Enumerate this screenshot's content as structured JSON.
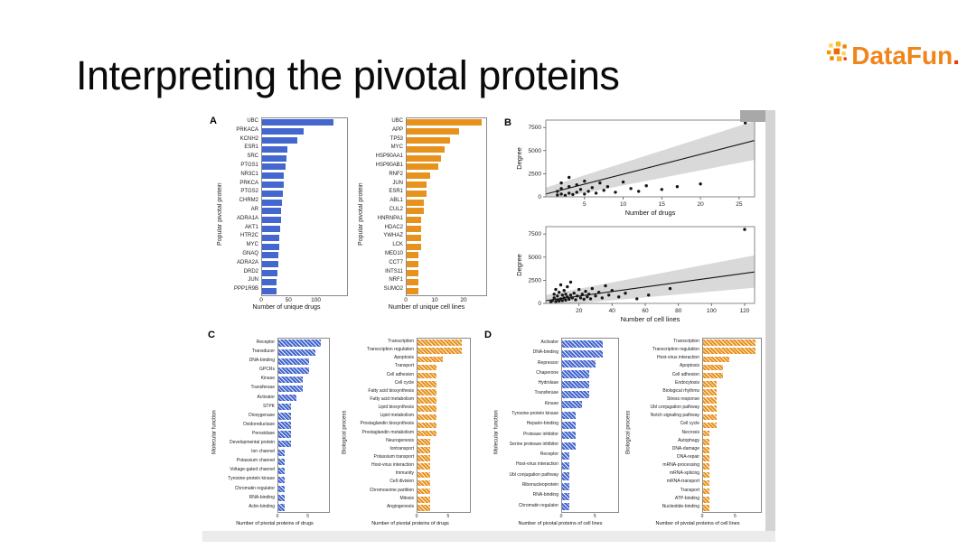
{
  "slide": {
    "title": "Interpreting the pivotal proteins",
    "panels": [
      "A",
      "B",
      "C",
      "D"
    ]
  },
  "logo": {
    "text": "DataFun",
    "dot": ".",
    "icon": "pixel-mosaic-icon"
  },
  "colors": {
    "blue": "#4467cf",
    "orange": "#e8921e",
    "band": "#b9b9b9"
  },
  "chart_data": [
    {
      "id": "a_drugs",
      "panel": "A",
      "type": "bar",
      "orientation": "horizontal",
      "color": "blue",
      "hatch": false,
      "ylabel": "Popular pivotal protein",
      "xlabel": "Number of unique drugs",
      "xlim": [
        0,
        155
      ],
      "xticks": [
        0,
        50,
        100
      ],
      "categories": [
        "UBC",
        "PRKACA",
        "KCNH2",
        "ESR1",
        "SRC",
        "PTGS1",
        "NR3C1",
        "PRKCA",
        "PTGS2",
        "CHRM2",
        "AR",
        "ADRA1A",
        "AKT1",
        "HTR2C",
        "MYC",
        "GNAQ",
        "ADRA2A",
        "DRD2",
        "JUN",
        "PPP1R9B"
      ],
      "values": [
        130,
        76,
        65,
        46,
        44,
        42,
        40,
        39,
        38,
        36,
        35,
        34,
        33,
        32,
        31,
        30,
        29,
        28,
        27,
        26
      ]
    },
    {
      "id": "a_cells",
      "panel": "A",
      "type": "bar",
      "orientation": "horizontal",
      "color": "orange",
      "hatch": false,
      "ylabel": "Popular pivotal protein",
      "xlabel": "Number of unique cell lines",
      "xlim": [
        0,
        27.5
      ],
      "xticks": [
        0,
        10,
        20
      ],
      "categories": [
        "UBC",
        "APP",
        "TP53",
        "MYC",
        "HSP90AA1",
        "HSP90AB1",
        "RNF2",
        "JUN",
        "ESR1",
        "ABL1",
        "CUL2",
        "HNRNPA1",
        "HDAC2",
        "YWHAZ",
        "LCK",
        "MED10",
        "CCT7",
        "INTS11",
        "NRF1",
        "SUMO2"
      ],
      "values": [
        26,
        18,
        15,
        13,
        12,
        11,
        8,
        7,
        7,
        6,
        6,
        5,
        5,
        5,
        5,
        4,
        4,
        4,
        4,
        4
      ]
    },
    {
      "id": "b_drugs",
      "panel": "B",
      "type": "scatter",
      "xlabel": "Number of drugs",
      "ylabel": "Degree",
      "xlim": [
        0,
        27
      ],
      "ylim": [
        0,
        8300
      ],
      "xticks": [
        5,
        10,
        15,
        20,
        25
      ],
      "yticks": [
        0,
        2500,
        5000,
        7500
      ],
      "line": [
        [
          0,
          300
        ],
        [
          27,
          6100
        ]
      ],
      "band": {
        "upper": [
          [
            0,
            1000
          ],
          [
            27,
            8200
          ]
        ],
        "lower": [
          [
            0,
            -400
          ],
          [
            27,
            4000
          ]
        ]
      },
      "points": [
        [
          1.5,
          200
        ],
        [
          1.5,
          600
        ],
        [
          2,
          300
        ],
        [
          2,
          900
        ],
        [
          2,
          1500
        ],
        [
          2.5,
          150
        ],
        [
          3,
          400
        ],
        [
          3,
          1100
        ],
        [
          3,
          2100
        ],
        [
          3.5,
          250
        ],
        [
          4,
          500
        ],
        [
          4,
          1300
        ],
        [
          4.5,
          800
        ],
        [
          5,
          300
        ],
        [
          5,
          1700
        ],
        [
          5.5,
          600
        ],
        [
          6,
          1000
        ],
        [
          6.5,
          400
        ],
        [
          7,
          1500
        ],
        [
          7.5,
          700
        ],
        [
          8,
          1100
        ],
        [
          9,
          500
        ],
        [
          10,
          1600
        ],
        [
          11,
          900
        ],
        [
          12,
          600
        ],
        [
          13,
          1200
        ],
        [
          15,
          800
        ],
        [
          17,
          1100
        ],
        [
          20,
          1400
        ],
        [
          25.8,
          8000
        ]
      ]
    },
    {
      "id": "b_cells",
      "panel": "B",
      "type": "scatter",
      "xlabel": "Number of cell lines",
      "ylabel": "Degree",
      "xlim": [
        0,
        126
      ],
      "ylim": [
        0,
        8300
      ],
      "xticks": [
        20,
        40,
        60,
        80,
        100,
        120
      ],
      "yticks": [
        0,
        2500,
        5000,
        7500
      ],
      "line": [
        [
          0,
          300
        ],
        [
          126,
          3400
        ]
      ],
      "band": {
        "upper": [
          [
            0,
            900
          ],
          [
            126,
            5200
          ]
        ],
        "lower": [
          [
            0,
            -300
          ],
          [
            126,
            1700
          ]
        ]
      },
      "points": [
        [
          3,
          150
        ],
        [
          4,
          300
        ],
        [
          5,
          600
        ],
        [
          5,
          1000
        ],
        [
          6,
          200
        ],
        [
          6,
          1500
        ],
        [
          7,
          400
        ],
        [
          7,
          800
        ],
        [
          8,
          250
        ],
        [
          8,
          1200
        ],
        [
          9,
          500
        ],
        [
          9,
          2000
        ],
        [
          10,
          300
        ],
        [
          10,
          900
        ],
        [
          11,
          600
        ],
        [
          11,
          1400
        ],
        [
          12,
          350
        ],
        [
          12,
          1000
        ],
        [
          13,
          700
        ],
        [
          13,
          1800
        ],
        [
          14,
          450
        ],
        [
          15,
          900
        ],
        [
          15,
          2300
        ],
        [
          16,
          600
        ],
        [
          17,
          1100
        ],
        [
          18,
          400
        ],
        [
          19,
          800
        ],
        [
          20,
          1500
        ],
        [
          21,
          600
        ],
        [
          22,
          1000
        ],
        [
          23,
          450
        ],
        [
          24,
          1300
        ],
        [
          25,
          700
        ],
        [
          26,
          1000
        ],
        [
          27,
          500
        ],
        [
          28,
          1600
        ],
        [
          30,
          800
        ],
        [
          32,
          1200
        ],
        [
          34,
          600
        ],
        [
          36,
          1900
        ],
        [
          38,
          900
        ],
        [
          40,
          1400
        ],
        [
          44,
          700
        ],
        [
          48,
          1100
        ],
        [
          55,
          500
        ],
        [
          62,
          900
        ],
        [
          75,
          1600
        ],
        [
          120,
          8000
        ]
      ]
    },
    {
      "id": "c_mf",
      "panel": "C",
      "type": "bar",
      "orientation": "horizontal",
      "color": "blue",
      "hatch": true,
      "ylabel": "Molecular function",
      "xlabel": "Number of pivotal proteins of drugs",
      "xlim": [
        0,
        8.3
      ],
      "xticks": [
        0,
        5
      ],
      "categories": [
        "Receptor",
        "Transducer",
        "DNA-binding",
        "GPCRs",
        "Kinase",
        "Transferase",
        "Activator",
        "STPK",
        "Dioxygenase",
        "Oxidoreductase",
        "Peroxidase",
        "Developmental protein",
        "Ion channel",
        "Potassium channel",
        "Voltage-gated channel",
        "Tyrosine-protein kinase",
        "Chromatin regulator",
        "RNA-binding",
        "Actin-binding"
      ],
      "values": [
        7,
        6,
        5,
        5,
        4,
        4,
        3,
        2,
        2,
        2,
        2,
        2,
        1,
        1,
        1,
        1,
        1,
        1,
        1
      ]
    },
    {
      "id": "c_bp",
      "panel": "C",
      "type": "bar",
      "orientation": "horizontal",
      "color": "orange",
      "hatch": true,
      "ylabel": "Biological process",
      "xlabel": "Number of pivotal proteins of drugs",
      "xlim": [
        0,
        8.3
      ],
      "xticks": [
        0,
        5
      ],
      "categories": [
        "Transcription",
        "Transcription regulation",
        "Apoptosis",
        "Transport",
        "Cell adhesion",
        "Cell cycle",
        "Fatty acid biosynthesis",
        "Fatty acid metabolism",
        "Lipid biosynthesis",
        "Lipid metabolism",
        "Prostaglandin biosynthesis",
        "Prostaglandin metabolism",
        "Neurogenesis",
        "Iontransport",
        "Potassium transport",
        "Host-virus interaction",
        "Immunity",
        "Cell division",
        "Chromosome partition",
        "Mitosis",
        "Angiogenesis"
      ],
      "values": [
        7,
        7,
        4,
        3,
        3,
        3,
        3,
        3,
        3,
        3,
        3,
        3,
        2,
        2,
        2,
        2,
        2,
        2,
        2,
        2,
        2
      ]
    },
    {
      "id": "d_mf",
      "panel": "D",
      "type": "bar",
      "orientation": "horizontal",
      "color": "blue",
      "hatch": true,
      "ylabel": "Molecular function",
      "xlabel": "Number of pivotal proteins of cell lines",
      "xlim": [
        0,
        8.3
      ],
      "xticks": [
        0,
        5
      ],
      "categories": [
        "Activator",
        "DNA-binding",
        "Repressor",
        "Chaperone",
        "Hydrolase",
        "Transferase",
        "Kinase",
        "Tyrosine-protein kinase",
        "Heparin-binding",
        "Protease inhibitor",
        "Serine protease inhibitor",
        "Receptor",
        "Host-virus interaction",
        "Ubl conjugation pathway",
        "Ribonucleoprotein",
        "RNA-binding",
        "Chromatin regulator"
      ],
      "values": [
        6,
        6,
        5,
        4,
        4,
        4,
        3,
        2,
        2,
        2,
        2,
        1,
        1,
        1,
        1,
        1,
        1
      ]
    },
    {
      "id": "d_bp",
      "panel": "D",
      "type": "bar",
      "orientation": "horizontal",
      "color": "orange",
      "hatch": true,
      "ylabel": "Biological process",
      "xlabel": "Number of pivotal proteins of cell lines",
      "xlim": [
        0,
        8.8
      ],
      "xticks": [
        0,
        5
      ],
      "categories": [
        "Transcription",
        "Transcription regulation",
        "Host-virus interaction",
        "Apoptosis",
        "Cell adhesion",
        "Endocytosis",
        "Biological rhythms",
        "Stress response",
        "Ubl conjugation pathway",
        "Notch signaling pathway",
        "Cell cycle",
        "Necrosis",
        "Autophagy",
        "DNA-damage",
        "DNA-repair",
        "mRNA-processing",
        "mRNA-splicing",
        "mRNA-transport",
        "Transport",
        "ATP-binding",
        "Nucleotide-binding"
      ],
      "values": [
        8,
        8,
        4,
        3,
        3,
        2,
        2,
        2,
        2,
        2,
        2,
        1,
        1,
        1,
        1,
        1,
        1,
        1,
        1,
        1,
        1
      ]
    }
  ]
}
